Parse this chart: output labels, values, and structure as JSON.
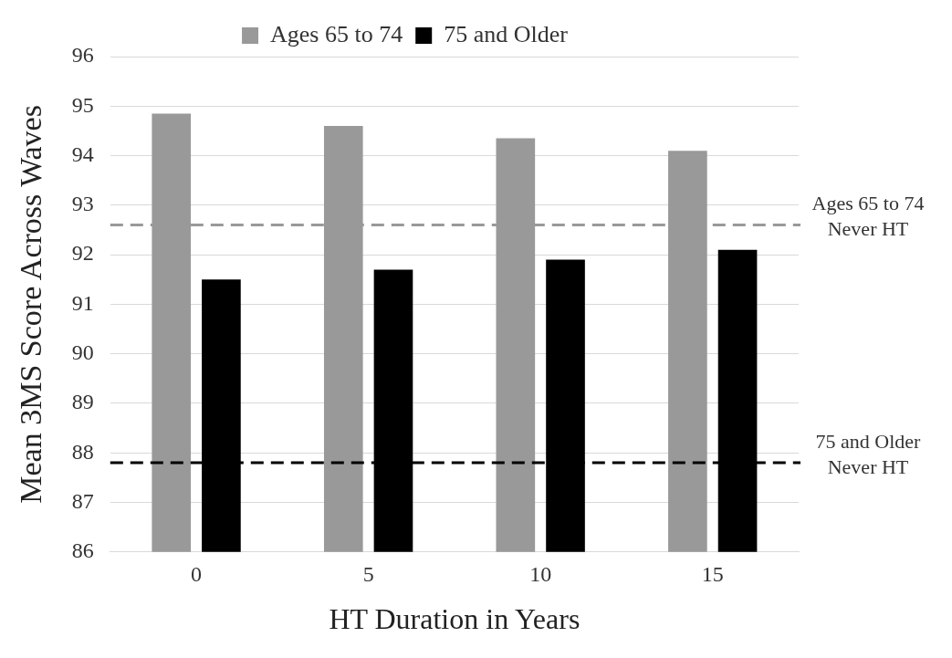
{
  "chart_data": {
    "type": "bar",
    "xlabel": "HT Duration in Years",
    "ylabel": "Mean 3MS Score Across Waves",
    "categories": [
      "0",
      "5",
      "10",
      "15"
    ],
    "series": [
      {
        "name": "Ages 65 to 74",
        "color": "#999999",
        "values": [
          94.85,
          94.6,
          94.35,
          94.1
        ]
      },
      {
        "name": "75 and Older",
        "color": "#000000",
        "values": [
          91.5,
          91.7,
          91.9,
          92.1
        ]
      }
    ],
    "ylim": [
      86,
      96
    ],
    "yticks": [
      86,
      87,
      88,
      89,
      90,
      91,
      92,
      93,
      94,
      95,
      96
    ],
    "grid": "y",
    "legend": "top",
    "ref_lines": [
      {
        "axis": "y",
        "value": 92.6,
        "label": "Ages 65 to 74\nNever HT",
        "color": "#999999",
        "line_style": "dashed"
      },
      {
        "axis": "y",
        "value": 87.8,
        "label": "75 and Older\nNever HT",
        "color": "#000000",
        "line_style": "dashed"
      }
    ]
  }
}
